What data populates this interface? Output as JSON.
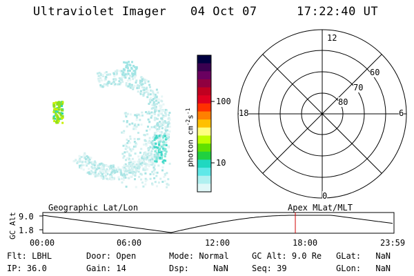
{
  "header": {
    "title": "Ultraviolet Imager",
    "date": "04 Oct 07",
    "time": "17:22:40 UT"
  },
  "colorbar": {
    "label_main": "photon cm",
    "label_exp1": "-2",
    "label_mid": "s",
    "label_exp2": "-1",
    "ticks": [
      "100",
      "10"
    ],
    "colors": [
      "#000040",
      "#3a0050",
      "#6a0060",
      "#900040",
      "#c00020",
      "#e00020",
      "#ff3000",
      "#ff8000",
      "#ffc000",
      "#ffff80",
      "#c0ff00",
      "#60e000",
      "#20d040",
      "#20d8c0",
      "#60e8e8",
      "#b0f0f0",
      "#e0f8f8"
    ]
  },
  "polar": {
    "mlt_labels": {
      "top": "12",
      "left": "18",
      "right": "6",
      "bottom": "0"
    },
    "lat_labels": [
      "60",
      "70",
      "80"
    ]
  },
  "timeline": {
    "ylabel": "GC Alt",
    "yticks": [
      "9.0",
      "1.8"
    ],
    "left_title": "Geographic Lat/Lon",
    "right_title": "Apex MLat/MLT",
    "xticks": [
      "00:00",
      "06:00",
      "12:00",
      "18:00",
      "23:59"
    ],
    "marker_color": "#d00000"
  },
  "info": {
    "flt_label": "Flt:",
    "flt_value": "LBHL",
    "ip_label": "IP:",
    "ip_value": "36.0",
    "door_label": "Door:",
    "door_value": "Open",
    "gain_label": "Gain:",
    "gain_value": "14",
    "mode_label": "Mode:",
    "mode_value": "Normal",
    "dsp_label": "Dsp:",
    "dsp_value": "NaN",
    "gcalt_label": "GC Alt:",
    "gcalt_value": "9.0 Re",
    "seq_label": "Seq:",
    "seq_value": "39",
    "glat_label": "GLat:",
    "glat_value": "NaN",
    "glon_label": "GLon:",
    "glon_value": "NaN"
  }
}
